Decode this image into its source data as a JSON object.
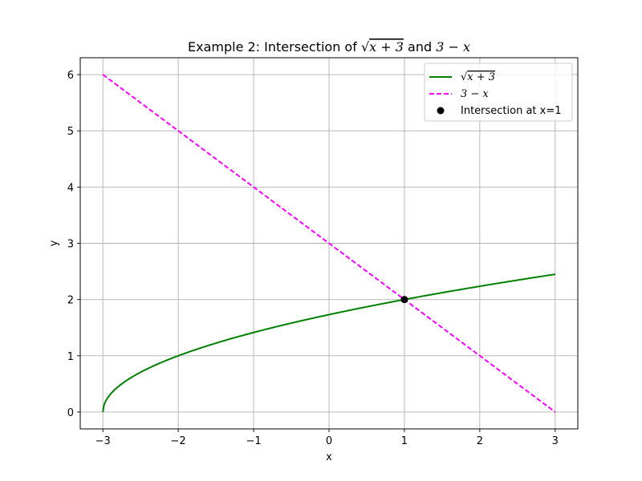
{
  "chart_data": {
    "type": "line",
    "title": {
      "prefix": "Example 2: Intersection of ",
      "expr1": "x + 3",
      "mid": " and ",
      "expr2": "3 − x"
    },
    "xlabel": "x",
    "ylabel": "y",
    "xlim": [
      -3.3,
      3.3
    ],
    "ylim": [
      -0.3,
      6.3
    ],
    "xticks": [
      -3,
      -2,
      -1,
      0,
      1,
      2,
      3
    ],
    "xtick_labels": [
      "−3",
      "−2",
      "−1",
      "0",
      "1",
      "2",
      "3"
    ],
    "yticks": [
      0,
      1,
      2,
      3,
      4,
      5,
      6
    ],
    "ytick_labels": [
      "0",
      "1",
      "2",
      "3",
      "4",
      "5",
      "6"
    ],
    "grid": true,
    "legend_position": "top-right",
    "series": [
      {
        "name": "x + 3",
        "label_has_sqrt": true,
        "function": "sqrt(x+3)",
        "domain": [
          -3,
          3
        ],
        "color": "#008000",
        "style": "solid"
      },
      {
        "name": "3 − x",
        "label_has_sqrt": false,
        "function": "3-x",
        "domain": [
          -3,
          3
        ],
        "color": "#ff00ff",
        "style": "dashed"
      }
    ],
    "points": [
      {
        "name": "Intersection at x=1",
        "x": 1,
        "y": 2,
        "color": "#000000"
      }
    ]
  }
}
